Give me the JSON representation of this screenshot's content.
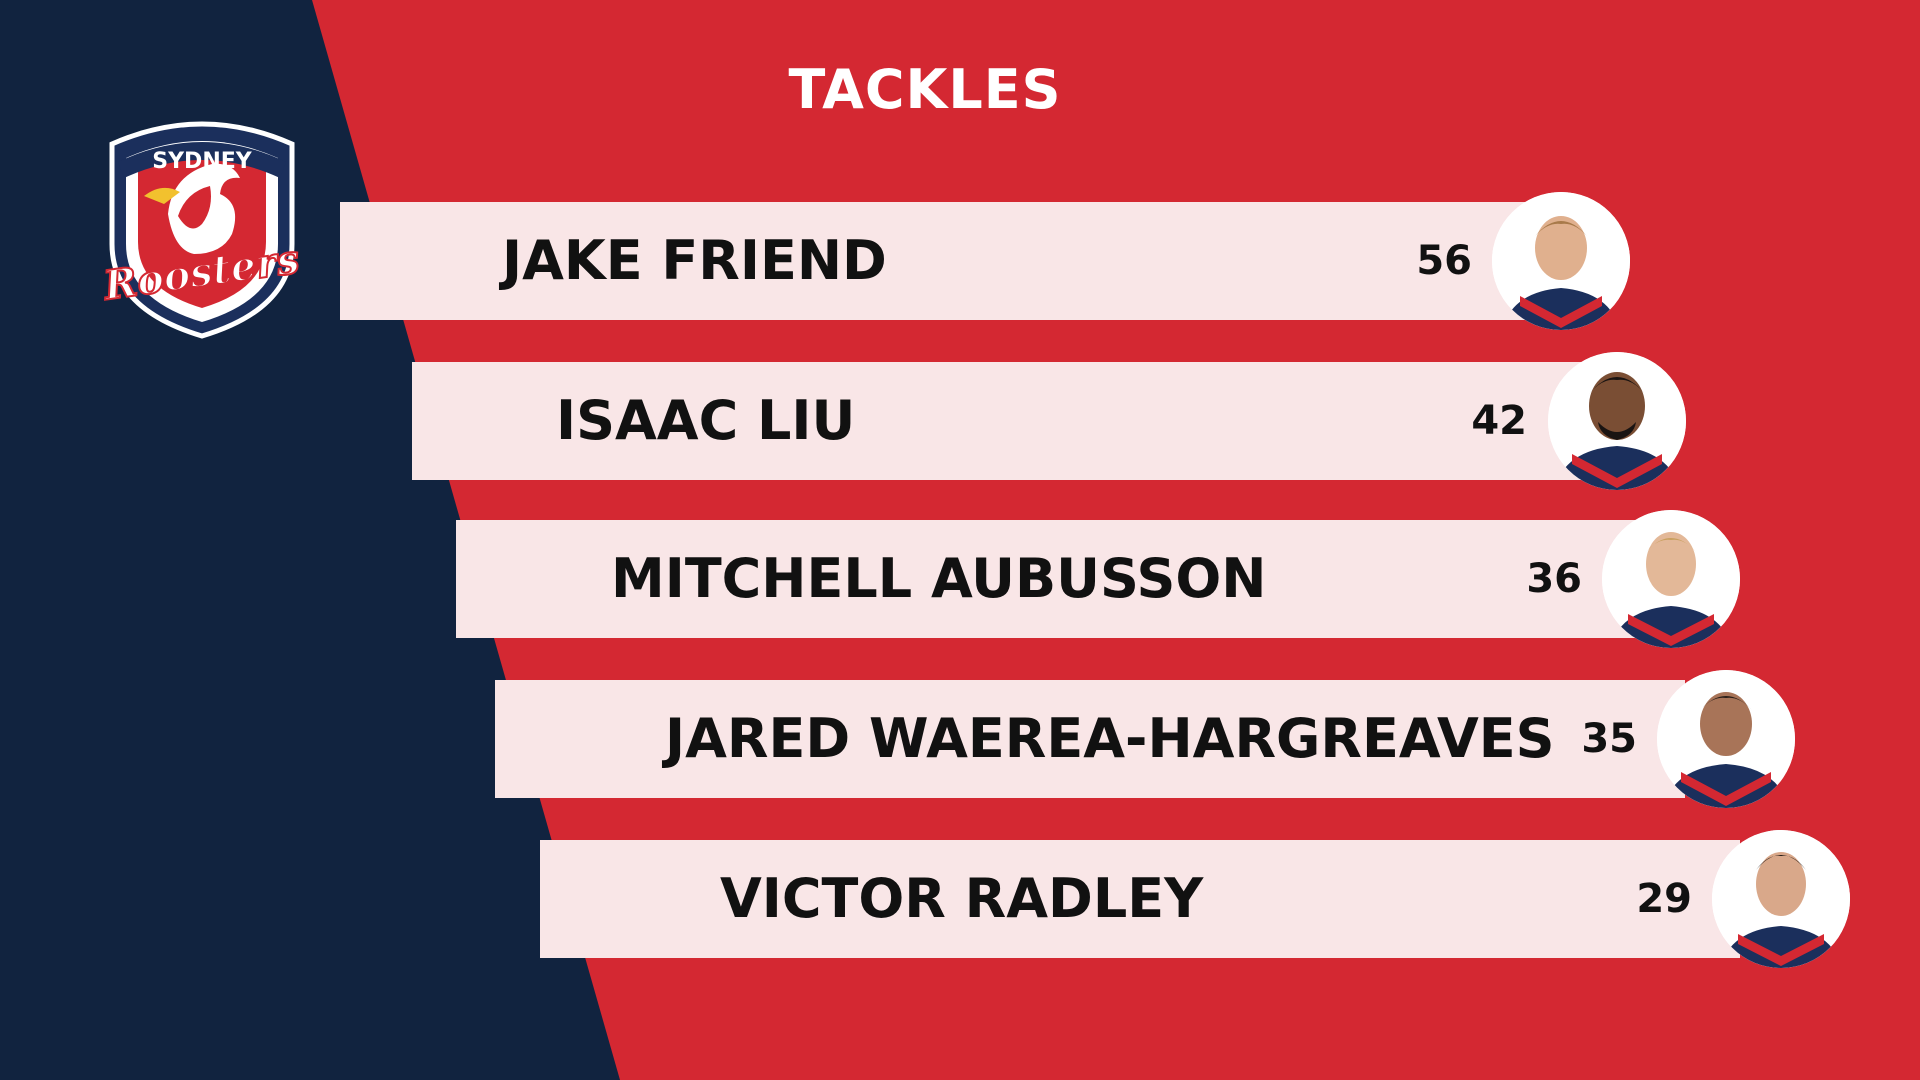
{
  "title": "TACKLES",
  "logo": {
    "text_top": "SYDNEY",
    "text_main": "Roosters"
  },
  "colors": {
    "background_red": "#d42832",
    "panel_navy": "#11233f",
    "row_pink": "#f9e6e7"
  },
  "players": [
    {
      "name": "JAKE FRIEND",
      "tackles": "56"
    },
    {
      "name": "ISAAC LIU",
      "tackles": "42"
    },
    {
      "name": "MITCHELL AUBUSSON",
      "tackles": "36"
    },
    {
      "name": "JARED WAEREA-HARGREAVES",
      "tackles": "35"
    },
    {
      "name": "VICTOR RADLEY",
      "tackles": "29"
    }
  ]
}
